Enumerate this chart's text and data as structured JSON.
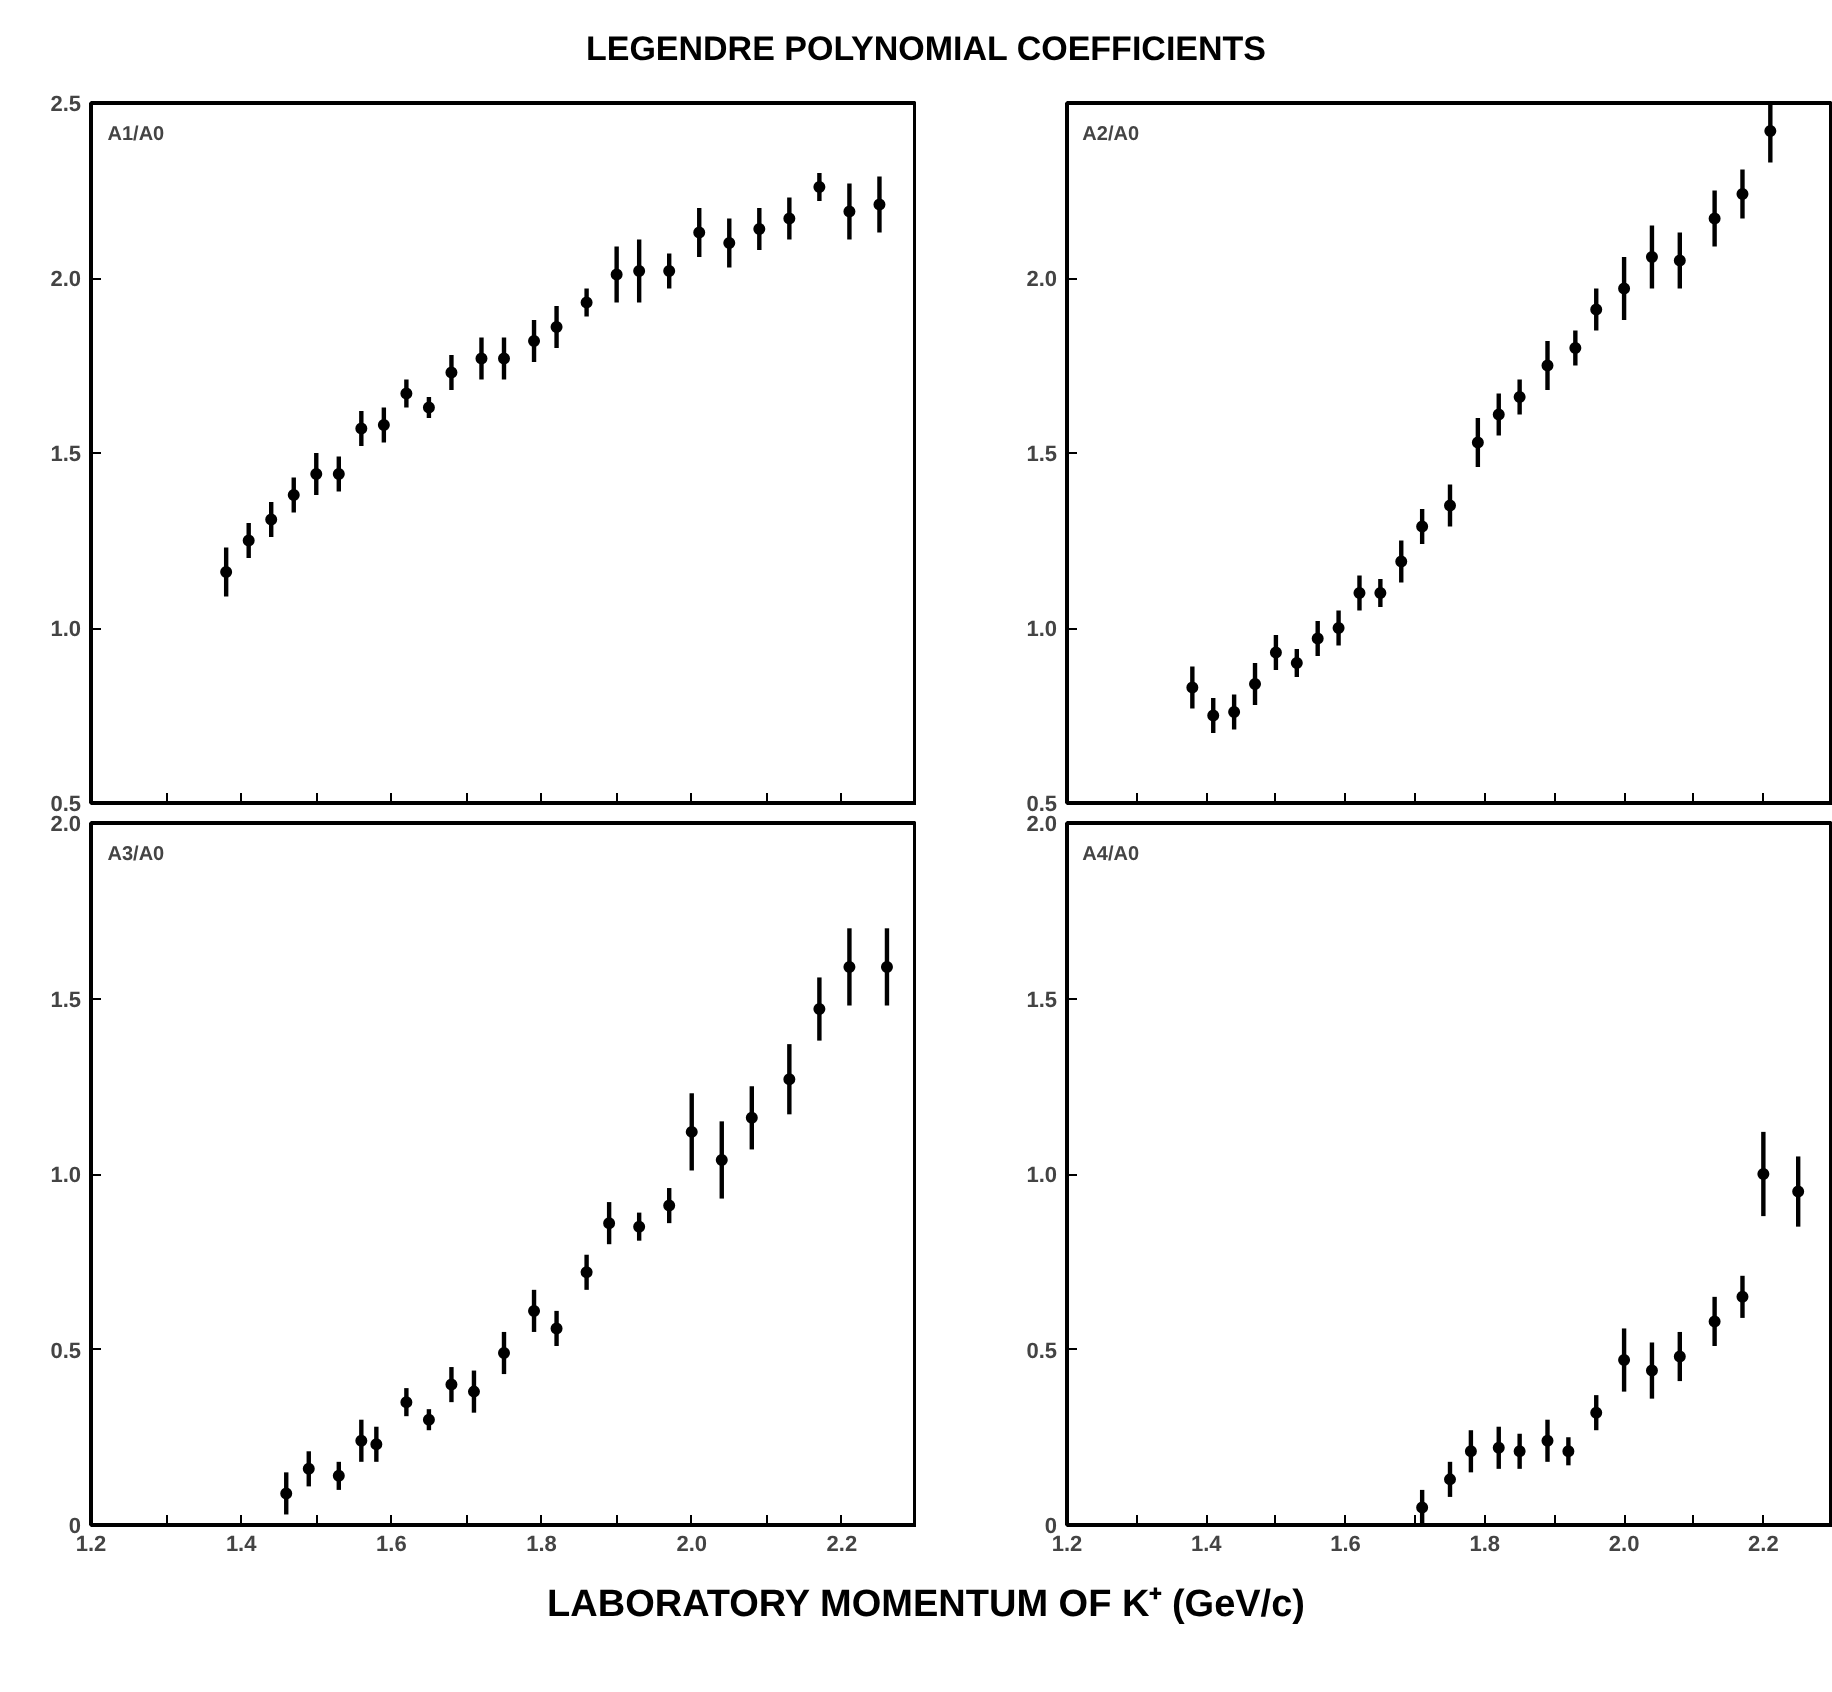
{
  "chart_data": [
    {
      "type": "scatter",
      "title": "LEGENDRE POLYNOMIAL COEFFICIENTS",
      "annotations": [
        "A1/A0"
      ],
      "marker": "circle",
      "tick_labels": "y",
      "xlim": [
        1.2,
        2.3
      ],
      "ylim": [
        0.5,
        2.5
      ],
      "xticks": [
        {
          "value": 1.2,
          "label": null
        },
        {
          "value": 1.3,
          "label": null
        },
        {
          "value": 1.4,
          "label": null
        },
        {
          "value": 1.5,
          "label": null
        },
        {
          "value": 1.6,
          "label": null
        },
        {
          "value": 1.7,
          "label": null
        },
        {
          "value": 1.8,
          "label": null
        },
        {
          "value": 1.9,
          "label": null
        },
        {
          "value": 2.0,
          "label": null
        },
        {
          "value": 2.1,
          "label": null
        },
        {
          "value": 2.2,
          "label": null
        }
      ],
      "yticks": [
        {
          "value": 0.5,
          "label": "0.5"
        },
        {
          "value": 1.0,
          "label": "1.0"
        },
        {
          "value": 1.5,
          "label": "1.5"
        },
        {
          "value": 2.0,
          "label": "2.0"
        },
        {
          "value": 2.5,
          "label": "2.5"
        }
      ],
      "x": [
        1.38,
        1.41,
        1.44,
        1.47,
        1.5,
        1.53,
        1.56,
        1.59,
        1.62,
        1.65,
        1.68,
        1.72,
        1.75,
        1.79,
        1.82,
        1.86,
        1.9,
        1.93,
        1.97,
        2.01,
        2.05,
        2.09,
        2.13,
        2.17,
        2.21,
        2.25
      ],
      "series": [
        {
          "color": "#000000",
          "values": [
            1.16,
            1.25,
            1.31,
            1.38,
            1.44,
            1.44,
            1.57,
            1.58,
            1.67,
            1.63,
            1.73,
            1.77,
            1.77,
            1.82,
            1.86,
            1.93,
            2.01,
            2.02,
            2.02,
            2.13,
            2.1,
            2.14,
            2.17,
            2.26,
            2.19,
            2.21
          ],
          "errors": [
            0.07,
            0.05,
            0.05,
            0.05,
            0.06,
            0.05,
            0.05,
            0.05,
            0.04,
            0.03,
            0.05,
            0.06,
            0.06,
            0.06,
            0.06,
            0.04,
            0.08,
            0.09,
            0.05,
            0.07,
            0.07,
            0.06,
            0.06,
            0.04,
            0.08,
            0.08
          ]
        }
      ]
    },
    {
      "type": "scatter",
      "annotations": [
        "A2/A0"
      ],
      "marker": "circle",
      "tick_labels": "y",
      "xlim": [
        1.2,
        2.3
      ],
      "ylim": [
        0.5,
        2.5
      ],
      "xticks": [
        {
          "value": 1.2,
          "label": null
        },
        {
          "value": 1.3,
          "label": null
        },
        {
          "value": 1.4,
          "label": null
        },
        {
          "value": 1.5,
          "label": null
        },
        {
          "value": 1.6,
          "label": null
        },
        {
          "value": 1.7,
          "label": null
        },
        {
          "value": 1.8,
          "label": null
        },
        {
          "value": 1.9,
          "label": null
        },
        {
          "value": 2.0,
          "label": null
        },
        {
          "value": 2.1,
          "label": null
        },
        {
          "value": 2.2,
          "label": null
        }
      ],
      "yticks": [
        {
          "value": 0.5,
          "label": "0.5"
        },
        {
          "value": 1.0,
          "label": "1.0"
        },
        {
          "value": 1.5,
          "label": "1.5"
        },
        {
          "value": 2.0,
          "label": "2.0"
        }
      ],
      "x": [
        1.38,
        1.41,
        1.44,
        1.47,
        1.5,
        1.53,
        1.56,
        1.59,
        1.62,
        1.65,
        1.68,
        1.71,
        1.75,
        1.79,
        1.82,
        1.85,
        1.89,
        1.93,
        1.96,
        2.0,
        2.04,
        2.08,
        2.13,
        2.17,
        2.21
      ],
      "series": [
        {
          "color": "#000000",
          "values": [
            0.83,
            0.75,
            0.76,
            0.84,
            0.93,
            0.9,
            0.97,
            1.0,
            1.1,
            1.1,
            1.19,
            1.29,
            1.35,
            1.53,
            1.61,
            1.66,
            1.75,
            1.8,
            1.91,
            1.97,
            2.06,
            2.05,
            2.17,
            2.24,
            2.42
          ],
          "errors": [
            0.06,
            0.05,
            0.05,
            0.06,
            0.05,
            0.04,
            0.05,
            0.05,
            0.05,
            0.04,
            0.06,
            0.05,
            0.06,
            0.07,
            0.06,
            0.05,
            0.07,
            0.05,
            0.06,
            0.09,
            0.09,
            0.08,
            0.08,
            0.07,
            0.09
          ]
        }
      ]
    },
    {
      "type": "scatter",
      "annotations": [
        "A3/A0"
      ],
      "xlabel": "LABORATORY MOMENTUM OF K⁺  (GeV/c)",
      "marker": "circle",
      "xlim": [
        1.2,
        2.3
      ],
      "ylim": [
        0,
        2.0
      ],
      "xticks": [
        {
          "value": 1.2,
          "label": "1.2"
        },
        {
          "value": 1.3,
          "label": null
        },
        {
          "value": 1.4,
          "label": "1.4"
        },
        {
          "value": 1.5,
          "label": null
        },
        {
          "value": 1.6,
          "label": "1.6"
        },
        {
          "value": 1.7,
          "label": null
        },
        {
          "value": 1.8,
          "label": "1.8"
        },
        {
          "value": 1.9,
          "label": null
        },
        {
          "value": 2.0,
          "label": "2.0"
        },
        {
          "value": 2.1,
          "label": null
        },
        {
          "value": 2.2,
          "label": "2.2"
        }
      ],
      "yticks": [
        {
          "value": 0,
          "label": "0"
        },
        {
          "value": 0.5,
          "label": "0.5"
        },
        {
          "value": 1.0,
          "label": "1.0"
        },
        {
          "value": 1.5,
          "label": "1.5"
        },
        {
          "value": 2.0,
          "label": "2.0"
        }
      ],
      "x": [
        1.46,
        1.49,
        1.53,
        1.56,
        1.58,
        1.62,
        1.65,
        1.68,
        1.71,
        1.75,
        1.79,
        1.82,
        1.86,
        1.89,
        1.93,
        1.97,
        2.0,
        2.04,
        2.08,
        2.13,
        2.17,
        2.21,
        2.26
      ],
      "series": [
        {
          "color": "#000000",
          "values": [
            0.09,
            0.16,
            0.14,
            0.24,
            0.23,
            0.35,
            0.3,
            0.4,
            0.38,
            0.49,
            0.61,
            0.56,
            0.72,
            0.86,
            0.85,
            0.91,
            1.12,
            1.04,
            1.16,
            1.27,
            1.47,
            1.59,
            1.59
          ],
          "errors": [
            0.06,
            0.05,
            0.04,
            0.06,
            0.05,
            0.04,
            0.03,
            0.05,
            0.06,
            0.06,
            0.06,
            0.05,
            0.05,
            0.06,
            0.04,
            0.05,
            0.11,
            0.11,
            0.09,
            0.1,
            0.09,
            0.11,
            0.11
          ]
        }
      ]
    },
    {
      "type": "scatter",
      "annotations": [
        "A4/A0"
      ],
      "marker": "circle",
      "xlim": [
        1.2,
        2.3
      ],
      "ylim": [
        0,
        2.0
      ],
      "xticks": [
        {
          "value": 1.2,
          "label": "1.2"
        },
        {
          "value": 1.3,
          "label": null
        },
        {
          "value": 1.4,
          "label": "1.4"
        },
        {
          "value": 1.5,
          "label": null
        },
        {
          "value": 1.6,
          "label": "1.6"
        },
        {
          "value": 1.7,
          "label": null
        },
        {
          "value": 1.8,
          "label": "1.8"
        },
        {
          "value": 1.9,
          "label": null
        },
        {
          "value": 2.0,
          "label": "2.0"
        },
        {
          "value": 2.1,
          "label": null
        },
        {
          "value": 2.2,
          "label": "2.2"
        }
      ],
      "yticks": [
        {
          "value": 0,
          "label": "0"
        },
        {
          "value": 0.5,
          "label": "0.5"
        },
        {
          "value": 1.0,
          "label": "1.0"
        },
        {
          "value": 1.5,
          "label": "1.5"
        },
        {
          "value": 2.0,
          "label": "2.0"
        }
      ],
      "x": [
        1.71,
        1.75,
        1.78,
        1.82,
        1.85,
        1.89,
        1.92,
        1.96,
        2.0,
        2.04,
        2.08,
        2.13,
        2.17,
        2.2,
        2.25
      ],
      "series": [
        {
          "color": "#000000",
          "values": [
            0.05,
            0.13,
            0.21,
            0.22,
            0.21,
            0.24,
            0.21,
            0.32,
            0.47,
            0.44,
            0.48,
            0.58,
            0.65,
            1.0,
            0.95
          ],
          "errors": [
            0.05,
            0.05,
            0.06,
            0.06,
            0.05,
            0.06,
            0.04,
            0.05,
            0.09,
            0.08,
            0.07,
            0.07,
            0.06,
            0.12,
            0.1
          ]
        }
      ]
    }
  ]
}
